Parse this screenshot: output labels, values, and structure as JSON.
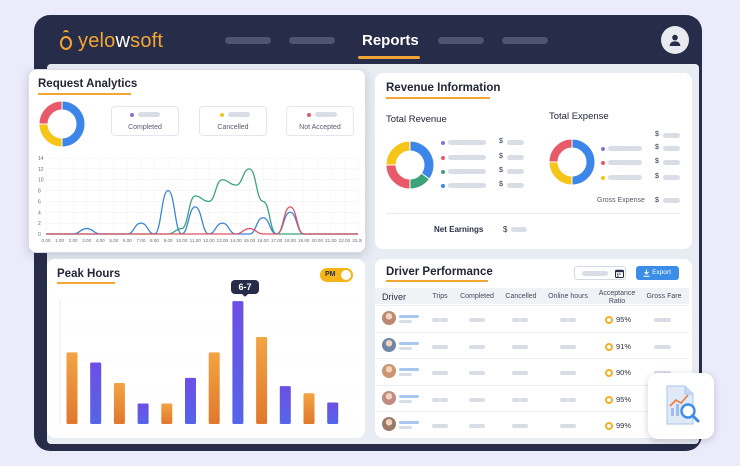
{
  "app": {
    "logo": {
      "pre": "yelo",
      "w": "w",
      "post": "soft"
    },
    "nav_active": "Reports",
    "icons": {
      "avatar": "user-icon",
      "calendar": "calendar-icon",
      "export": "download-icon",
      "report": "report-search-icon"
    }
  },
  "request_analytics": {
    "title": "Request Analytics",
    "legend": [
      {
        "label": "Completed",
        "color": "#8b6fd8"
      },
      {
        "label": "Cancelled",
        "color": "#f5c518"
      },
      {
        "label": "Not Accepted",
        "color": "#e85a6a"
      }
    ],
    "y_ticks": [
      "14",
      "12",
      "10",
      "8",
      "6",
      "4",
      "2",
      "0"
    ],
    "x_ticks": [
      "0.00",
      "1.00",
      "2.00",
      "3.00",
      "4.00",
      "5.00",
      "6.00",
      "7.00",
      "8.00",
      "9.00",
      "10.00",
      "11.00",
      "12.00",
      "13.00",
      "14.00",
      "15.00",
      "16.00",
      "17.00",
      "18.00",
      "19.00",
      "20.00",
      "21.00",
      "22.00",
      "23.00"
    ]
  },
  "revenue": {
    "title": "Revenue Information",
    "total_revenue": "Total Revenue",
    "total_expense": "Total Expense",
    "currency": "$",
    "gross_expense": "Gross Expense",
    "net_earnings": "Net Earnings"
  },
  "peak_hours": {
    "title": "Peak Hours",
    "toggle": "PM",
    "tooltip": "6-7"
  },
  "driver_performance": {
    "title": "Driver Performance",
    "export": "Export",
    "columns": [
      "Driver",
      "Trips",
      "Completed",
      "Cancelled",
      "Online hours",
      "Acceptance Ratio",
      "Gross Fare"
    ],
    "acceptance": [
      "95%",
      "91%",
      "90%",
      "95%",
      "99%"
    ]
  },
  "chart_data": [
    {
      "type": "line",
      "x": [
        "0.00",
        "1.00",
        "2.00",
        "3.00",
        "4.00",
        "5.00",
        "6.00",
        "7.00",
        "8.00",
        "9.00",
        "10.00",
        "11.00",
        "12.00",
        "13.00",
        "14.00",
        "15.00",
        "16.00",
        "17.00",
        "18.00",
        "19.00",
        "20.00",
        "21.00",
        "22.00",
        "23.00"
      ],
      "ylim": [
        0,
        14
      ],
      "series": [
        {
          "color": "#3aa37a",
          "values": [
            0,
            0,
            0,
            0,
            0,
            0,
            0,
            0,
            0,
            0,
            1,
            7,
            6,
            10,
            9,
            12,
            6,
            0,
            0,
            0,
            0,
            0,
            0,
            0
          ]
        },
        {
          "color": "#3b86d6",
          "values": [
            0,
            0,
            0,
            1,
            0,
            0,
            0,
            2,
            0,
            8,
            0,
            5,
            0,
            2,
            0,
            0,
            3,
            0,
            4,
            0,
            0,
            0,
            0,
            0
          ]
        },
        {
          "color": "#e05565",
          "values": [
            0,
            0,
            0,
            0,
            0,
            0,
            0,
            0,
            0,
            0,
            0,
            0,
            0,
            0,
            0,
            1,
            0,
            0,
            5,
            0,
            0,
            0,
            0,
            0
          ]
        }
      ]
    },
    {
      "type": "bar",
      "values": [
        7,
        6,
        4,
        2,
        2,
        4.5,
        7,
        12,
        8.5,
        3.7,
        3,
        2.1
      ],
      "colors": [
        "orange",
        "purple",
        "orange",
        "purple",
        "orange",
        "purple",
        "orange",
        "purple",
        "orange",
        "purple",
        "orange",
        "purple"
      ],
      "ylim": [
        0,
        12.5
      ]
    },
    {
      "type": "pie",
      "values": [
        50,
        25,
        25
      ],
      "colors": [
        "#3b86e8",
        "#f5c518",
        "#e85a6a"
      ]
    },
    {
      "type": "pie",
      "values": [
        35,
        15,
        25,
        25
      ],
      "colors": [
        "#3b86e8",
        "#3aa37a",
        "#e85a6a",
        "#f5c518"
      ]
    },
    {
      "type": "pie",
      "values": [
        50,
        25,
        25
      ],
      "colors": [
        "#3b86e8",
        "#f5c518",
        "#e85a6a"
      ]
    }
  ]
}
